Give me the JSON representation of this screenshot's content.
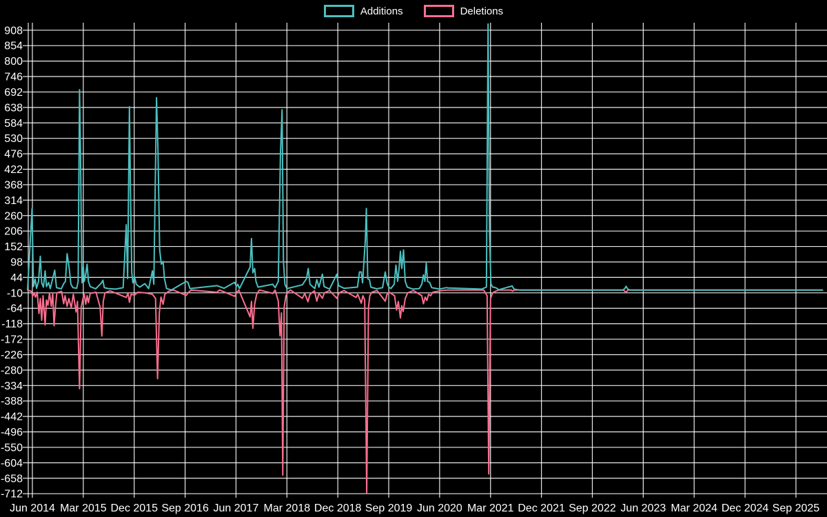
{
  "chart_data": {
    "type": "line",
    "title": "",
    "background": "#000000",
    "grid_color": "#ffffff",
    "text_color": "#ffffff",
    "legend_position": "top",
    "x_axis": {
      "tick_labels": [
        "Jun 2014",
        "Mar 2015",
        "Dec 2015",
        "Sep 2016",
        "Jun 2017",
        "Mar 2018",
        "Dec 2018",
        "Sep 2019",
        "Jun 2020",
        "Mar 2021",
        "Dec 2021",
        "Sep 2022",
        "Jun 2023",
        "Mar 2024",
        "Dec 2024",
        "Sep 2025"
      ],
      "tick_months": [
        0,
        9,
        18,
        27,
        36,
        45,
        54,
        63,
        72,
        81,
        90,
        99,
        108,
        117,
        126,
        135
      ],
      "month_min": -0.85,
      "month_max": 140.5
    },
    "y_axis": {
      "ticks": [
        908,
        854,
        800,
        746,
        692,
        638,
        584,
        530,
        476,
        422,
        368,
        314,
        260,
        206,
        152,
        98,
        44,
        -10,
        -64,
        -118,
        -172,
        -226,
        -280,
        -334,
        -388,
        -442,
        -496,
        -550,
        -604,
        -658,
        -712
      ],
      "scale_max": 934,
      "scale_min": -726
    },
    "series": [
      {
        "name": "Additions",
        "color": "#4bc0c0",
        "points": [
          [
            -0.85,
            0
          ],
          [
            -0.06,
            285
          ],
          [
            0.18,
            12
          ],
          [
            0.49,
            38
          ],
          [
            0.73,
            6
          ],
          [
            1.09,
            30
          ],
          [
            1.4,
            118
          ],
          [
            1.64,
            25
          ],
          [
            1.95,
            10
          ],
          [
            2.25,
            67
          ],
          [
            2.49,
            12
          ],
          [
            2.86,
            26
          ],
          [
            3.16,
            5
          ],
          [
            3.95,
            69
          ],
          [
            4.26,
            8
          ],
          [
            5.11,
            4
          ],
          [
            5.53,
            22
          ],
          [
            5.84,
            30
          ],
          [
            6.14,
            127
          ],
          [
            6.51,
            76
          ],
          [
            6.81,
            20
          ],
          [
            7.18,
            8
          ],
          [
            7.84,
            6
          ],
          [
            8.09,
            30
          ],
          [
            8.33,
            700
          ],
          [
            8.51,
            480
          ],
          [
            8.76,
            25
          ],
          [
            9,
            83
          ],
          [
            9.18,
            30
          ],
          [
            9.43,
            55
          ],
          [
            9.67,
            90
          ],
          [
            9.91,
            30
          ],
          [
            10.22,
            12
          ],
          [
            11.19,
            4
          ],
          [
            12.22,
            25
          ],
          [
            12.47,
            34
          ],
          [
            12.71,
            8
          ],
          [
            13.38,
            5
          ],
          [
            14.72,
            3
          ],
          [
            16.05,
            8
          ],
          [
            16.6,
            228
          ],
          [
            16.84,
            40
          ],
          [
            17.15,
            640
          ],
          [
            17.33,
            365
          ],
          [
            17.57,
            60
          ],
          [
            17.76,
            25
          ],
          [
            18.06,
            46
          ],
          [
            18.36,
            20
          ],
          [
            18.97,
            10
          ],
          [
            19.88,
            22
          ],
          [
            20.55,
            5
          ],
          [
            21.22,
            67
          ],
          [
            21.47,
            20
          ],
          [
            21.95,
            672
          ],
          [
            22.2,
            490
          ],
          [
            22.5,
            140
          ],
          [
            22.8,
            90
          ],
          [
            23.11,
            100
          ],
          [
            23.35,
            40
          ],
          [
            23.72,
            5
          ],
          [
            24.57,
            0
          ],
          [
            27.18,
            30
          ],
          [
            27.49,
            27
          ],
          [
            27.85,
            5
          ],
          [
            32.66,
            15
          ],
          [
            33.87,
            6
          ],
          [
            35.76,
            27
          ],
          [
            36.06,
            12
          ],
          [
            36.31,
            20
          ],
          [
            36.61,
            5
          ],
          [
            38.49,
            80
          ],
          [
            38.74,
            180
          ],
          [
            38.98,
            60
          ],
          [
            39.29,
            75
          ],
          [
            39.53,
            30
          ],
          [
            39.89,
            10
          ],
          [
            42.51,
            20
          ],
          [
            42.93,
            8
          ],
          [
            43.48,
            30
          ],
          [
            43.85,
            472
          ],
          [
            44.15,
            630
          ],
          [
            44.39,
            100
          ],
          [
            44.64,
            20
          ],
          [
            45,
            5
          ],
          [
            47.74,
            18
          ],
          [
            48.47,
            40
          ],
          [
            48.77,
            75
          ],
          [
            49.08,
            20
          ],
          [
            49.93,
            5
          ],
          [
            50.29,
            36
          ],
          [
            50.66,
            10
          ],
          [
            51.27,
            55
          ],
          [
            51.57,
            12
          ],
          [
            52.54,
            3
          ],
          [
            53.82,
            55
          ],
          [
            54.12,
            15
          ],
          [
            55.1,
            6
          ],
          [
            57.47,
            10
          ],
          [
            57.83,
            63
          ],
          [
            58.14,
            63
          ],
          [
            58.38,
            25
          ],
          [
            58.62,
            100
          ],
          [
            58.87,
            175
          ],
          [
            59.05,
            285
          ],
          [
            59.29,
            40
          ],
          [
            59.6,
            36
          ],
          [
            59.84,
            10
          ],
          [
            60.87,
            4
          ],
          [
            61.91,
            8
          ],
          [
            62.39,
            63
          ],
          [
            62.7,
            25
          ],
          [
            63,
            10
          ],
          [
            63.37,
            5
          ],
          [
            63.97,
            20
          ],
          [
            64.28,
            87
          ],
          [
            64.58,
            30
          ],
          [
            64.83,
            75
          ],
          [
            65.07,
            135
          ],
          [
            65.31,
            75
          ],
          [
            65.62,
            140
          ],
          [
            65.92,
            30
          ],
          [
            66.28,
            10
          ],
          [
            67.26,
            3
          ],
          [
            68.41,
            5
          ],
          [
            68.84,
            20
          ],
          [
            69.14,
            53
          ],
          [
            69.39,
            30
          ],
          [
            69.63,
            94
          ],
          [
            69.87,
            30
          ],
          [
            70.24,
            26
          ],
          [
            70.6,
            8
          ],
          [
            72,
            3
          ],
          [
            73.16,
            8
          ],
          [
            73.58,
            7
          ],
          [
            79.42,
            3
          ],
          [
            80.27,
            10
          ],
          [
            80.57,
            930
          ],
          [
            80.82,
            200
          ],
          [
            81.06,
            22
          ],
          [
            81.36,
            10
          ],
          [
            81.73,
            9
          ],
          [
            82.03,
            7
          ],
          [
            82.46,
            1
          ],
          [
            84.83,
            14
          ],
          [
            85.13,
            3
          ],
          [
            86.1,
            0
          ],
          [
            104.35,
            0
          ],
          [
            104.71,
            4
          ],
          [
            104.96,
            13
          ],
          [
            105.26,
            3
          ],
          [
            105.68,
            0
          ],
          [
            139.7,
            0
          ]
        ]
      },
      {
        "name": "Deletions",
        "color": "#fb6f8f",
        "points": [
          [
            -0.85,
            0
          ],
          [
            -0.18,
            -5
          ],
          [
            0.06,
            -22
          ],
          [
            0.3,
            -10
          ],
          [
            0.55,
            -25
          ],
          [
            0.85,
            -8
          ],
          [
            1.16,
            -82
          ],
          [
            1.4,
            -30
          ],
          [
            1.64,
            -106
          ],
          [
            1.89,
            -20
          ],
          [
            2.25,
            -122
          ],
          [
            2.49,
            -35
          ],
          [
            2.74,
            -53
          ],
          [
            3.04,
            -10
          ],
          [
            3.34,
            -57
          ],
          [
            3.59,
            -12
          ],
          [
            3.83,
            -125
          ],
          [
            4.07,
            -60
          ],
          [
            4.32,
            -10
          ],
          [
            5.17,
            -5
          ],
          [
            5.53,
            -48
          ],
          [
            5.78,
            -20
          ],
          [
            6.14,
            -57
          ],
          [
            6.45,
            -30
          ],
          [
            6.87,
            -62
          ],
          [
            7.24,
            -15
          ],
          [
            7.72,
            -77
          ],
          [
            7.97,
            -40
          ],
          [
            8.33,
            -345
          ],
          [
            8.63,
            -60
          ],
          [
            8.94,
            -30
          ],
          [
            9.18,
            -15
          ],
          [
            9.43,
            -50
          ],
          [
            9.67,
            -20
          ],
          [
            9.91,
            -44
          ],
          [
            10.22,
            -12
          ],
          [
            11.25,
            -8
          ],
          [
            11.98,
            -60
          ],
          [
            12.28,
            -161
          ],
          [
            12.53,
            -40
          ],
          [
            12.83,
            -10
          ],
          [
            13.74,
            -3
          ],
          [
            16.6,
            -26
          ],
          [
            16.9,
            -10
          ],
          [
            17.15,
            -43
          ],
          [
            17.45,
            -15
          ],
          [
            18.06,
            -18
          ],
          [
            18.61,
            -8
          ],
          [
            19.88,
            -10
          ],
          [
            21.22,
            -15
          ],
          [
            21.77,
            -30
          ],
          [
            22.13,
            -310
          ],
          [
            22.44,
            -80
          ],
          [
            22.74,
            -25
          ],
          [
            23.11,
            -50
          ],
          [
            23.41,
            -15
          ],
          [
            24.08,
            -5
          ],
          [
            24.93,
            0
          ],
          [
            27.18,
            -19
          ],
          [
            27.61,
            -8
          ],
          [
            28.09,
            0
          ],
          [
            32.66,
            -8
          ],
          [
            33.08,
            0
          ],
          [
            35.76,
            -22
          ],
          [
            36.12,
            -10
          ],
          [
            36.49,
            0
          ],
          [
            38.49,
            -94
          ],
          [
            38.74,
            -40
          ],
          [
            38.98,
            -134
          ],
          [
            39.29,
            -50
          ],
          [
            39.65,
            -15
          ],
          [
            40.14,
            0
          ],
          [
            42.51,
            -12
          ],
          [
            42.93,
            0
          ],
          [
            43.48,
            -40
          ],
          [
            43.78,
            -160
          ],
          [
            44.03,
            -80
          ],
          [
            44.27,
            -647
          ],
          [
            44.51,
            -60
          ],
          [
            44.82,
            -20
          ],
          [
            45.18,
            -8
          ],
          [
            45.61,
            0
          ],
          [
            47.74,
            -29
          ],
          [
            48.16,
            -12
          ],
          [
            48.71,
            -41
          ],
          [
            49.08,
            -15
          ],
          [
            49.87,
            -3
          ],
          [
            50.29,
            -39
          ],
          [
            50.66,
            -12
          ],
          [
            51.27,
            -29
          ],
          [
            51.63,
            -10
          ],
          [
            52.54,
            -2
          ],
          [
            53.82,
            -29
          ],
          [
            54.24,
            -10
          ],
          [
            55.1,
            -2
          ],
          [
            57.23,
            -26
          ],
          [
            57.53,
            -15
          ],
          [
            57.83,
            -30
          ],
          [
            58.14,
            -46
          ],
          [
            58.44,
            -20
          ],
          [
            58.75,
            -35
          ],
          [
            59.11,
            -710
          ],
          [
            59.42,
            -60
          ],
          [
            59.66,
            -20
          ],
          [
            60.02,
            -8
          ],
          [
            60.93,
            -2
          ],
          [
            62.39,
            -39
          ],
          [
            62.7,
            -15
          ],
          [
            63.12,
            -8
          ],
          [
            64.03,
            -20
          ],
          [
            64.4,
            -70
          ],
          [
            64.7,
            -40
          ],
          [
            65.07,
            -98
          ],
          [
            65.31,
            -55
          ],
          [
            65.55,
            -75
          ],
          [
            65.92,
            -30
          ],
          [
            66.34,
            -10
          ],
          [
            67.38,
            -2
          ],
          [
            68.84,
            -20
          ],
          [
            69.14,
            -48
          ],
          [
            69.45,
            -25
          ],
          [
            69.75,
            -37
          ],
          [
            70.05,
            -15
          ],
          [
            70.42,
            -20
          ],
          [
            70.78,
            -8
          ],
          [
            72.06,
            -3
          ],
          [
            73.34,
            0
          ],
          [
            79.78,
            0
          ],
          [
            80.39,
            -20
          ],
          [
            80.69,
            -643
          ],
          [
            81,
            -30
          ],
          [
            81.36,
            -10
          ],
          [
            81.85,
            -5
          ],
          [
            82.46,
            0
          ],
          [
            84.65,
            0
          ],
          [
            84.89,
            -4
          ],
          [
            85.26,
            0
          ],
          [
            104.47,
            0
          ],
          [
            104.96,
            -8
          ],
          [
            105.32,
            0
          ],
          [
            139.7,
            0
          ]
        ]
      }
    ]
  }
}
